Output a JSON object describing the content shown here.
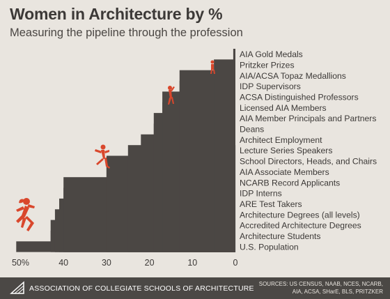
{
  "header": {
    "title": "Women in Architecture by %",
    "subtitle": "Measuring the pipeline through the profession"
  },
  "footer": {
    "org": "ASSOCIATION OF COLLEGIATE SCHOOLS OF ARCHITECTURE",
    "sources_line1": "SOURCES: US CENSUS, NAAB, NCES, NCARB,",
    "sources_line2": "AIA, ACSA, SHarE, BLS, PRITZKER"
  },
  "colors": {
    "background": "#e9e5df",
    "bars": "#4b4744",
    "figures": "#d9472c",
    "text": "#3c3937"
  },
  "chart_data": {
    "type": "bar",
    "orientation": "horizontal",
    "x_axis_reversed": true,
    "categories": [
      "U.S. Population",
      "Architecture Students",
      "Accredited Architecture Degrees",
      "Architecture Degrees (all levels)",
      "ARE Test Takers",
      "IDP Interns",
      "NCARB Record Applicants",
      "AIA Associate Members",
      "School Directors, Heads, and Chairs",
      "Lecture Series Speakers",
      "Architect Employment",
      "Deans",
      "AIA Member Principals and Partners",
      "Licensed AIA Members",
      "ACSA Distinguished Professors",
      "IDP Supervisors",
      "AIA/ACSA Topaz Medallions",
      "Pritzker Prizes",
      "AIA Gold Medals"
    ],
    "values": [
      51,
      43,
      43,
      42,
      41,
      40,
      40,
      30,
      30,
      25,
      22,
      19,
      19,
      17,
      17,
      13,
      13,
      5,
      0.5
    ],
    "tick_labels": [
      "50%",
      "40",
      "30",
      "20",
      "10",
      "0"
    ],
    "xlim": [
      51,
      0
    ],
    "figure_icons": [
      "runner-icon",
      "stepping-figure-icon",
      "climbing-figure-icon",
      "top-figure-icon"
    ]
  }
}
